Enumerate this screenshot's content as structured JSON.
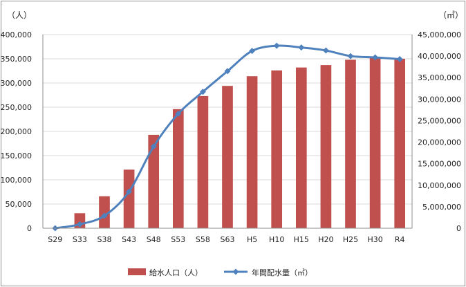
{
  "chart_data": {
    "type": "bar",
    "categories": [
      "S29",
      "S33",
      "S38",
      "S43",
      "S48",
      "S53",
      "S58",
      "S63",
      "H5",
      "H10",
      "H15",
      "H20",
      "H25",
      "H30",
      "R4"
    ],
    "left_unit": "（人）",
    "right_unit": "（㎥）",
    "y_left": {
      "min": 0,
      "max": 400000,
      "step": 50000,
      "tick_labels": [
        "0",
        "50,000",
        "100,000",
        "150,000",
        "200,000",
        "250,000",
        "300,000",
        "350,000",
        "400,000"
      ]
    },
    "y_right": {
      "min": 0,
      "max": 45000000,
      "step": 5000000,
      "tick_labels": [
        "0",
        "5,000,000",
        "10,000,000",
        "15,000,000",
        "20,000,000",
        "25,000,000",
        "30,000,000",
        "35,000,000",
        "40,000,000",
        "45,000,000"
      ]
    },
    "grid": true,
    "legend_position": "bottom",
    "series": [
      {
        "name": "給水人口（人）",
        "type": "bar",
        "axis": "left",
        "color": "#c0504d",
        "values": [
          0,
          31000,
          66000,
          121000,
          193000,
          246000,
          273000,
          294000,
          314000,
          326000,
          332000,
          337000,
          348000,
          353000,
          350000
        ]
      },
      {
        "name": "年間配水量（㎥）",
        "type": "line",
        "axis": "right",
        "color": "#4f81bd",
        "marker": "diamond",
        "values": [
          0,
          900000,
          2900000,
          8500000,
          19000000,
          26600000,
          31700000,
          36500000,
          41200000,
          42400000,
          42000000,
          41300000,
          40000000,
          39700000,
          39300000
        ]
      }
    ]
  }
}
